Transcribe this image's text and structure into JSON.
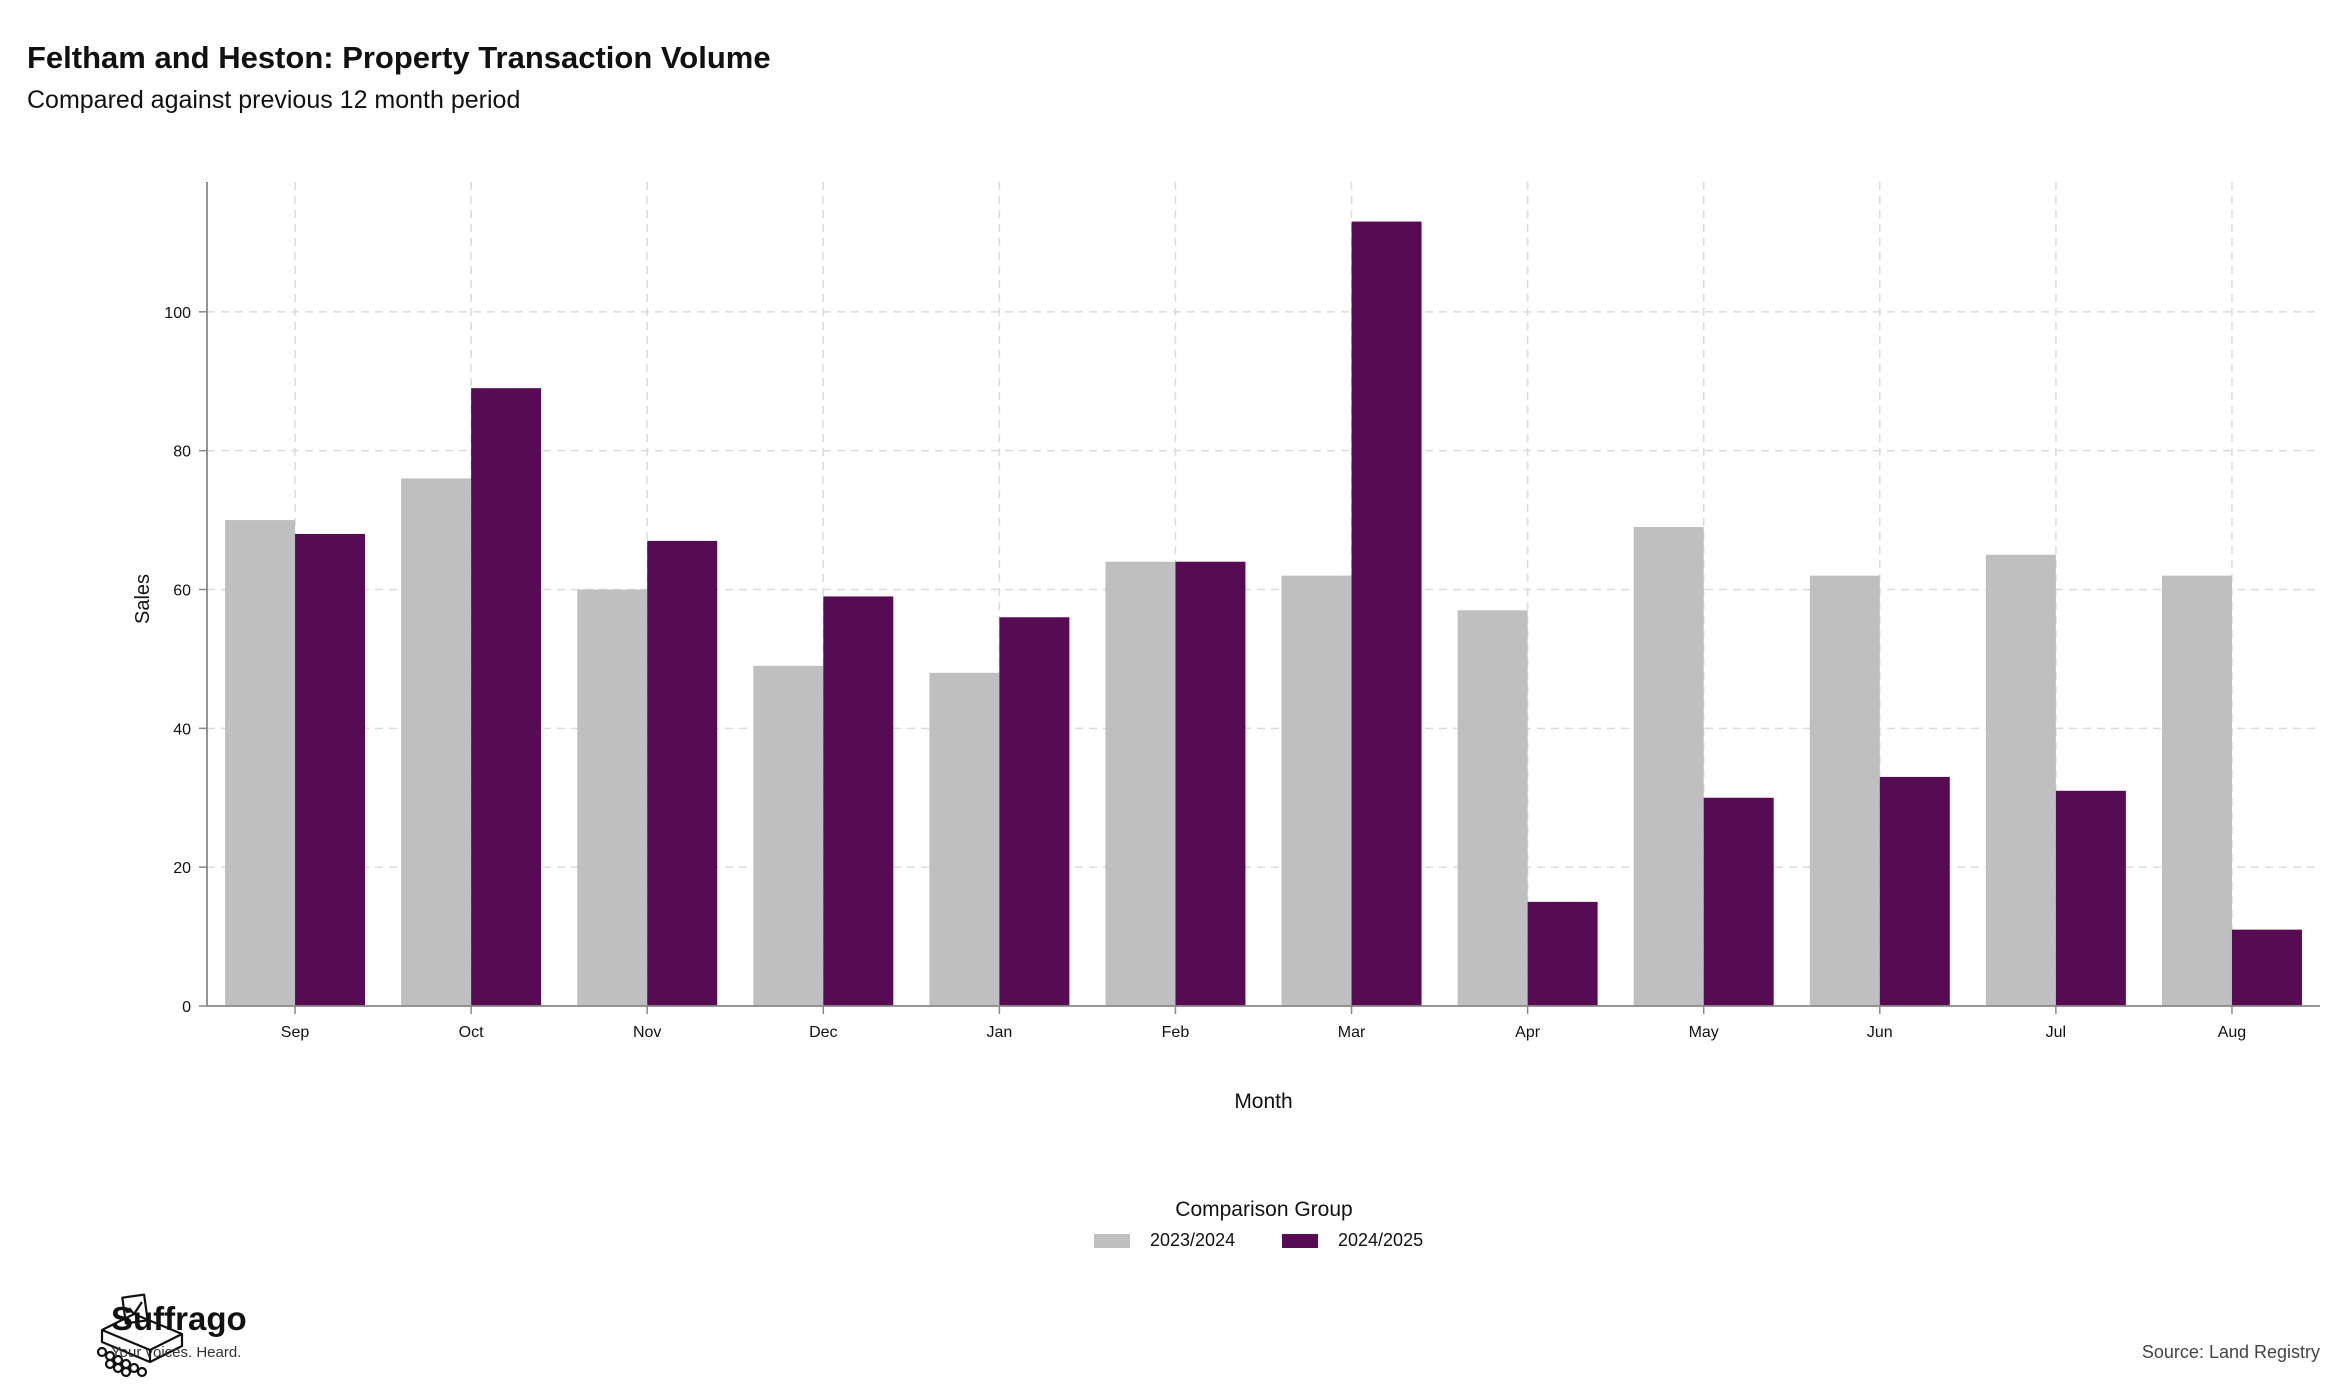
{
  "header": {
    "title": "Feltham and Heston: Property Transaction Volume",
    "subtitle": "Compared against previous 12 month period"
  },
  "legend": {
    "title": "Comparison Group",
    "items": [
      {
        "label": "2023/2024",
        "color": "#bfbfbf"
      },
      {
        "label": "2024/2025",
        "color": "#570b52"
      }
    ]
  },
  "branding": {
    "name": "Suffrago",
    "tagline": "Your voices. Heard."
  },
  "source": "Source: Land Registry",
  "chart_data": {
    "type": "bar",
    "title": "Feltham and Heston: Property Transaction Volume",
    "subtitle": "Compared against previous 12 month period",
    "xlabel": "Month",
    "ylabel": "Sales",
    "categories": [
      "Sep",
      "Oct",
      "Nov",
      "Dec",
      "Jan",
      "Feb",
      "Mar",
      "Apr",
      "May",
      "Jun",
      "Jul",
      "Aug"
    ],
    "series": [
      {
        "name": "2023/2024",
        "color": "#bfbfbf",
        "values": [
          70,
          76,
          60,
          49,
          48,
          64,
          62,
          57,
          69,
          62,
          65,
          62
        ]
      },
      {
        "name": "2024/2025",
        "color": "#570b52",
        "values": [
          68,
          89,
          67,
          59,
          56,
          64,
          113,
          15,
          30,
          33,
          31,
          11
        ]
      }
    ],
    "yticks": [
      0,
      20,
      40,
      60,
      80,
      100
    ],
    "ylim": [
      0,
      118.7
    ],
    "grid": true,
    "legend_position": "bottom"
  }
}
